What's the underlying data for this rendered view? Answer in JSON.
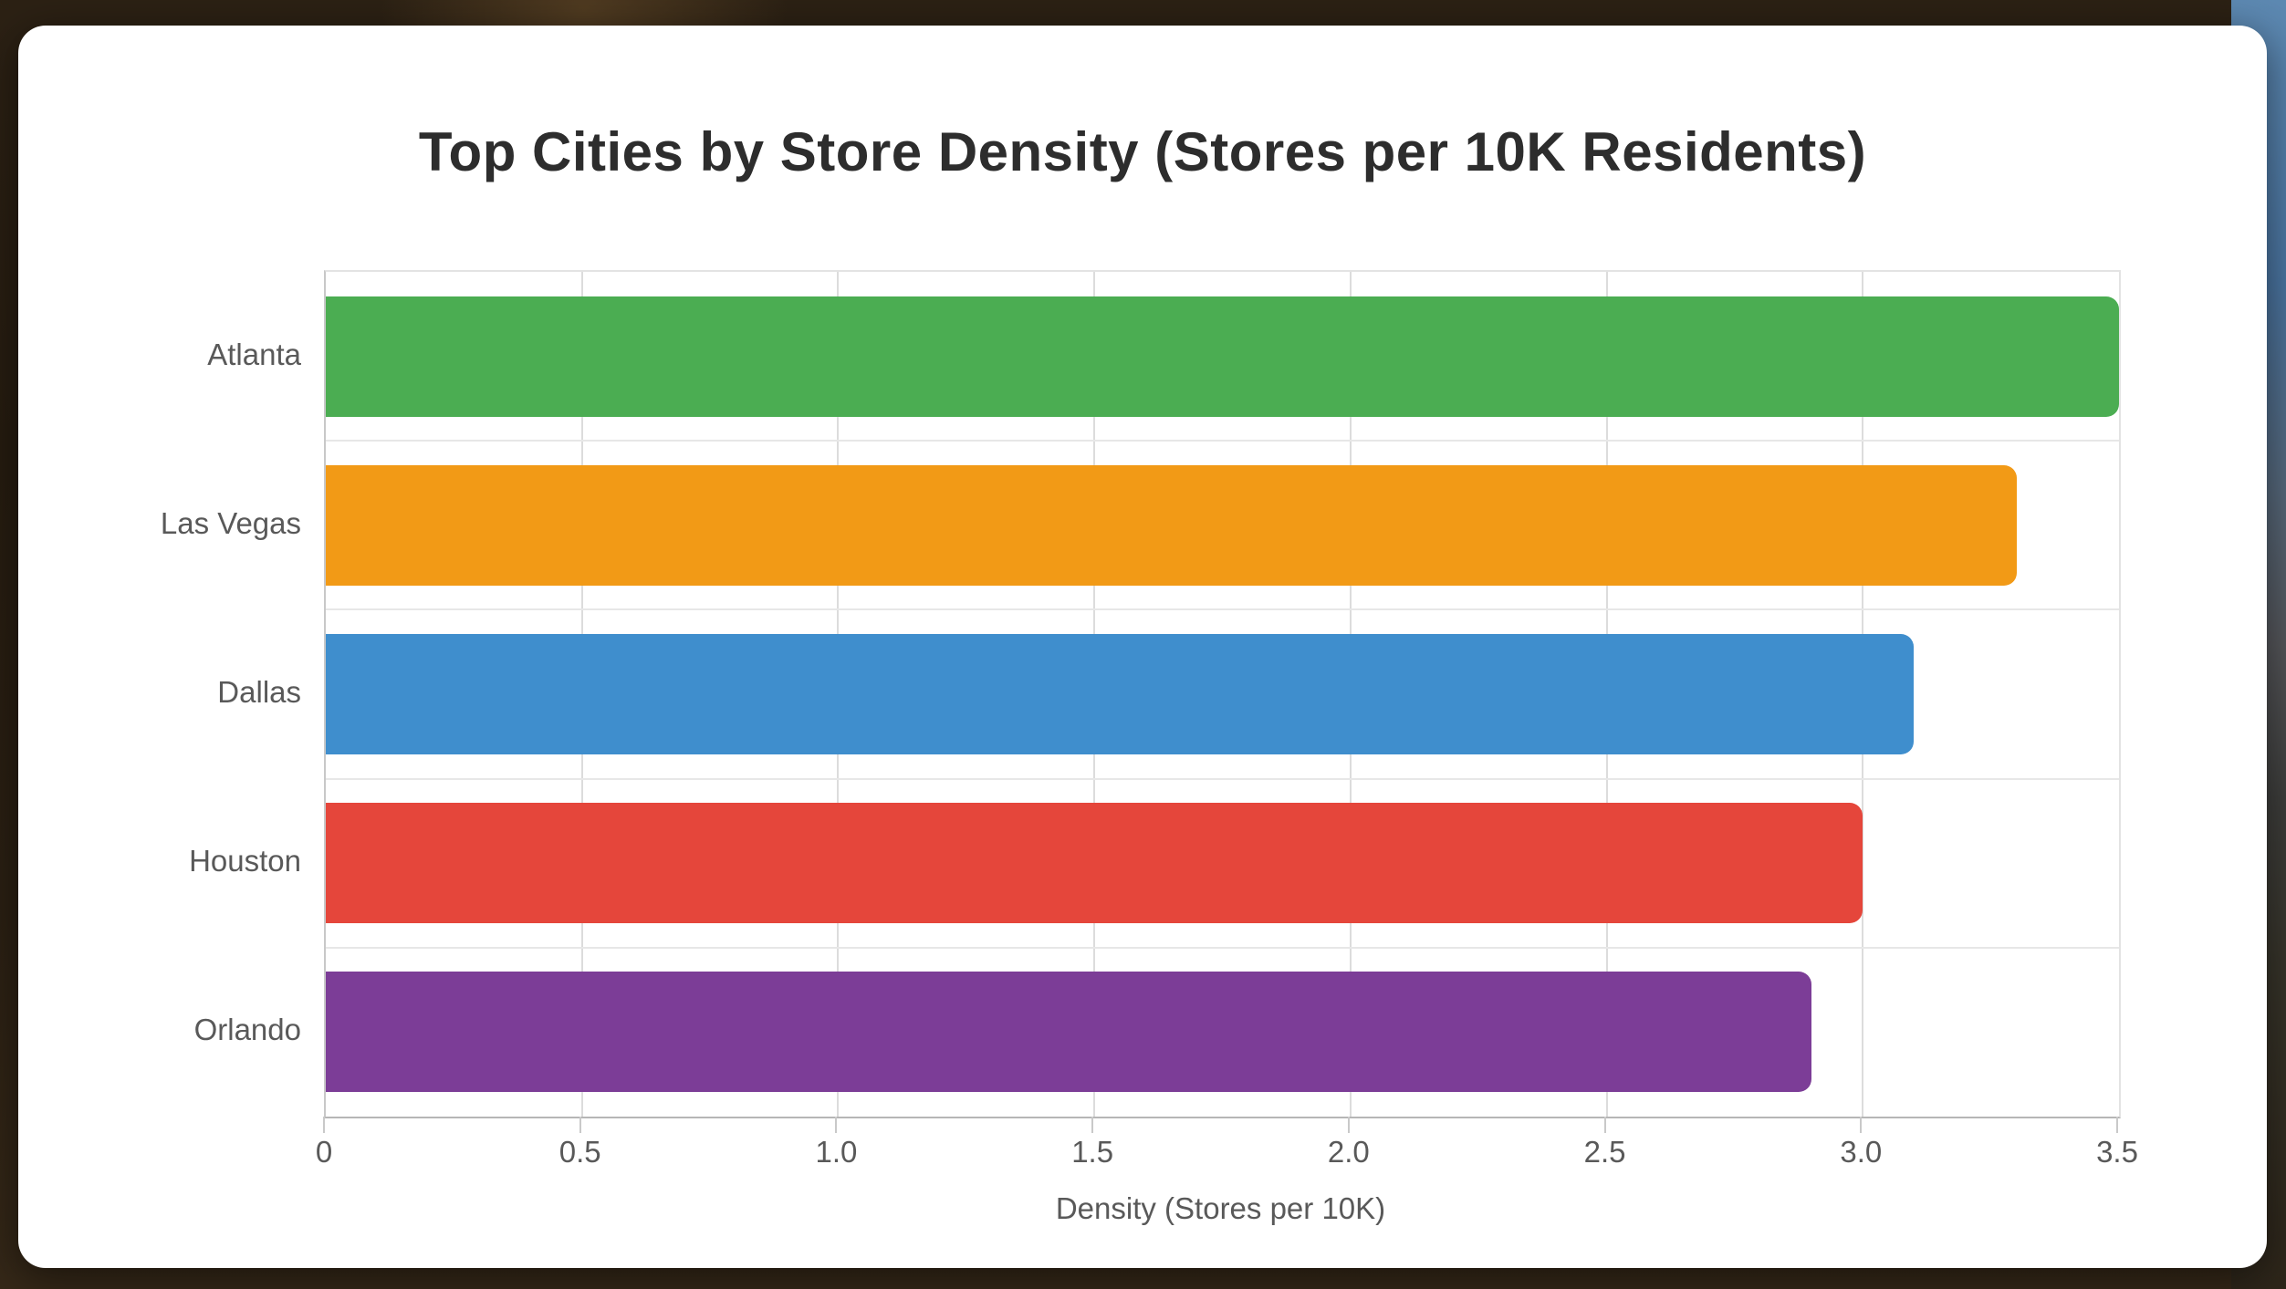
{
  "card": {
    "background": "#ffffff"
  },
  "chart_data": {
    "type": "bar",
    "orientation": "horizontal",
    "title": "Top Cities by Store Density (Stores per 10K Residents)",
    "categories": [
      "Atlanta",
      "Las Vegas",
      "Dallas",
      "Houston",
      "Orlando"
    ],
    "values": [
      3.5,
      3.3,
      3.1,
      3.0,
      2.9
    ],
    "bar_colors": [
      "#4BAD52",
      "#F29A16",
      "#3F8ECD",
      "#E5463B",
      "#7C3D97"
    ],
    "xlabel": "Density (Stores per 10K)",
    "ylabel": "",
    "xlim": [
      0,
      3.5
    ],
    "xticks": [
      0,
      0.5,
      1.0,
      1.5,
      2.0,
      2.5,
      3.0,
      3.5
    ],
    "xtick_labels": [
      "0",
      "0.5",
      "1.0",
      "1.5",
      "2.0",
      "2.5",
      "3.0",
      "3.5"
    ],
    "grid": true,
    "legend_position": "none",
    "title_color": "#2d2d2d",
    "text_color": "#595959",
    "grid_color": "#dcdcdc",
    "axis_color": "#b6b6b6",
    "plot_background": "#ffffff"
  }
}
